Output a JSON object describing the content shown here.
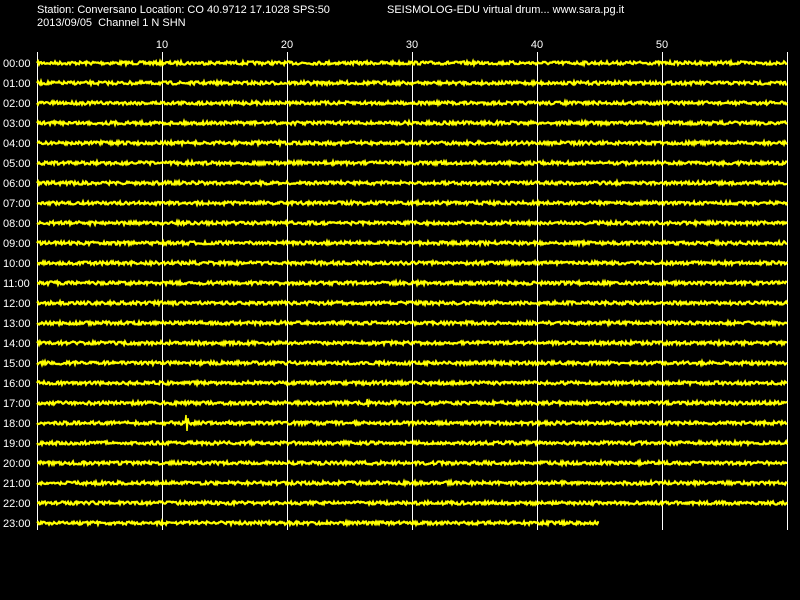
{
  "header": {
    "station_line": "Station: Conversano Location: CO 40.9712 17.1028 SPS:50",
    "date_line": "2013/09/05  Channel 1 N SHN",
    "program": "SEISMOLOG-EDU virtual drum... www.sara.pg.it"
  },
  "colors": {
    "background": "#000000",
    "trace": "#ffff00",
    "grid": "#ffffff",
    "text": "#ffffff"
  },
  "chart_data": {
    "type": "line",
    "title": "",
    "xlabel": "",
    "ylabel": "",
    "xlim": [
      0,
      60
    ],
    "x_ticks": [
      10,
      20,
      30,
      40,
      50
    ],
    "grid": true,
    "rows": [
      "00:00",
      "01:00",
      "02:00",
      "03:00",
      "04:00",
      "05:00",
      "06:00",
      "07:00",
      "08:00",
      "09:00",
      "10:00",
      "11:00",
      "12:00",
      "13:00",
      "14:00",
      "15:00",
      "16:00",
      "17:00",
      "18:00",
      "19:00",
      "20:00",
      "21:00",
      "22:00",
      "23:00"
    ],
    "trace_end_minute": [
      60,
      60,
      60,
      60,
      60,
      60,
      60,
      60,
      60,
      60,
      60,
      60,
      60,
      60,
      60,
      60,
      60,
      60,
      60,
      60,
      60,
      60,
      60,
      45
    ],
    "events": [
      {
        "row": "17:00",
        "minute": 26.5,
        "amplitude": 0.5
      },
      {
        "row": "18:00",
        "minute": 12,
        "amplitude": 1.0
      },
      {
        "row": "18:00",
        "minute": 25.5,
        "amplitude": 0.4
      }
    ]
  }
}
